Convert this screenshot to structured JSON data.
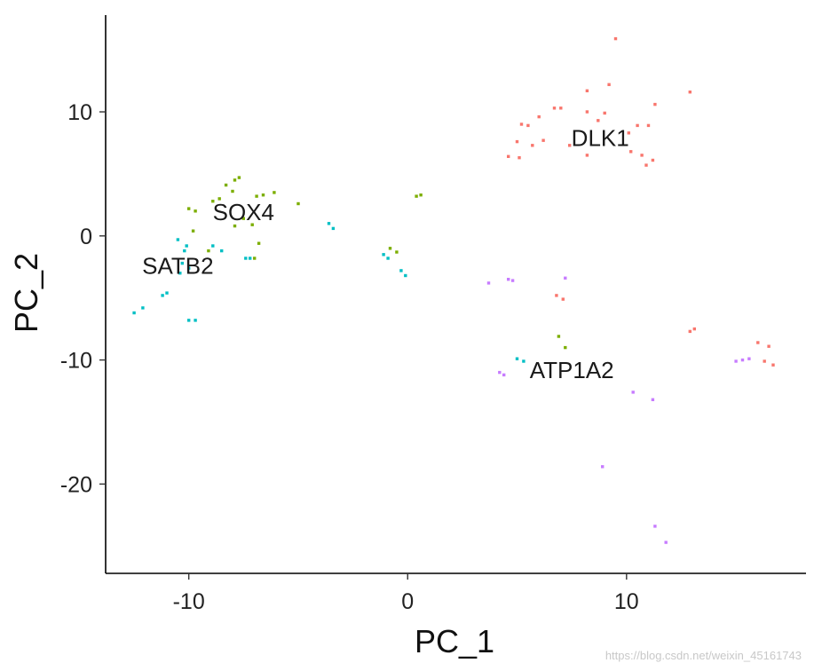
{
  "chart_data": {
    "type": "scatter",
    "xlabel": "PC_1",
    "ylabel": "PC_2",
    "xlim": [
      -13.8,
      18.2
    ],
    "ylim": [
      -27.2,
      17.8
    ],
    "x_ticks": [
      -10,
      0,
      10
    ],
    "y_ticks": [
      10,
      0,
      -10,
      -20
    ],
    "grid": false,
    "legend": "none",
    "series": [
      {
        "color": "#F8766D",
        "points": [
          [
            9.5,
            15.9
          ],
          [
            8.2,
            11.7
          ],
          [
            9.2,
            12.2
          ],
          [
            12.9,
            11.6
          ],
          [
            6.7,
            10.3
          ],
          [
            7.0,
            10.3
          ],
          [
            8.2,
            10.0
          ],
          [
            9.0,
            9.9
          ],
          [
            11.3,
            10.6
          ],
          [
            6.0,
            9.6
          ],
          [
            8.7,
            9.3
          ],
          [
            5.2,
            9.0
          ],
          [
            5.5,
            8.9
          ],
          [
            10.5,
            8.9
          ],
          [
            11.0,
            8.9
          ],
          [
            10.1,
            8.3
          ],
          [
            5.0,
            7.6
          ],
          [
            5.7,
            7.3
          ],
          [
            7.4,
            7.3
          ],
          [
            6.2,
            7.7
          ],
          [
            10.2,
            6.8
          ],
          [
            4.6,
            6.4
          ],
          [
            5.1,
            6.3
          ],
          [
            8.2,
            6.5
          ],
          [
            10.7,
            6.5
          ],
          [
            11.2,
            6.1
          ],
          [
            10.9,
            5.7
          ],
          [
            6.8,
            -4.8
          ],
          [
            7.1,
            -5.1
          ],
          [
            12.9,
            -7.7
          ],
          [
            13.1,
            -7.5
          ],
          [
            16.0,
            -8.6
          ],
          [
            16.5,
            -8.9
          ],
          [
            16.3,
            -10.1
          ],
          [
            16.7,
            -10.4
          ]
        ]
      },
      {
        "color": "#7CAE00",
        "points": [
          [
            -7.7,
            4.7
          ],
          [
            -7.9,
            4.5
          ],
          [
            -8.3,
            4.1
          ],
          [
            -8.0,
            3.6
          ],
          [
            -6.1,
            3.5
          ],
          [
            -6.9,
            3.2
          ],
          [
            -6.6,
            3.3
          ],
          [
            -8.6,
            3.0
          ],
          [
            -8.9,
            2.8
          ],
          [
            -5.0,
            2.6
          ],
          [
            0.4,
            3.2
          ],
          [
            0.6,
            3.3
          ],
          [
            -10.0,
            2.2
          ],
          [
            -9.7,
            2.0
          ],
          [
            -7.5,
            1.4
          ],
          [
            -7.9,
            0.8
          ],
          [
            -7.1,
            0.9
          ],
          [
            -9.8,
            0.4
          ],
          [
            -6.8,
            -0.6
          ],
          [
            -0.8,
            -1.0
          ],
          [
            -0.5,
            -1.3
          ],
          [
            -9.1,
            -1.2
          ],
          [
            -7.0,
            -1.8
          ],
          [
            6.9,
            -8.1
          ],
          [
            7.2,
            -9.0
          ]
        ]
      },
      {
        "color": "#00BFC4",
        "points": [
          [
            -3.6,
            1.0
          ],
          [
            -3.4,
            0.6
          ],
          [
            -10.5,
            -0.3
          ],
          [
            -10.1,
            -0.8
          ],
          [
            -8.9,
            -0.8
          ],
          [
            -8.5,
            -1.2
          ],
          [
            -10.2,
            -1.2
          ],
          [
            -7.4,
            -1.8
          ],
          [
            -7.2,
            -1.8
          ],
          [
            -1.1,
            -1.5
          ],
          [
            -0.9,
            -1.8
          ],
          [
            -10.3,
            -2.2
          ],
          [
            -10.0,
            -2.6
          ],
          [
            -10.4,
            -3.0
          ],
          [
            -0.3,
            -2.8
          ],
          [
            -0.1,
            -3.2
          ],
          [
            -11.0,
            -4.6
          ],
          [
            -11.2,
            -4.8
          ],
          [
            -12.1,
            -5.8
          ],
          [
            -12.5,
            -6.2
          ],
          [
            -10.0,
            -6.8
          ],
          [
            -9.7,
            -6.8
          ],
          [
            5.0,
            -9.9
          ],
          [
            5.3,
            -10.1
          ]
        ]
      },
      {
        "color": "#C77CFF",
        "points": [
          [
            3.7,
            -3.8
          ],
          [
            4.6,
            -3.5
          ],
          [
            4.8,
            -3.6
          ],
          [
            7.2,
            -3.4
          ],
          [
            4.2,
            -11.0
          ],
          [
            4.4,
            -11.2
          ],
          [
            10.3,
            -12.6
          ],
          [
            11.2,
            -13.2
          ],
          [
            8.9,
            -18.6
          ],
          [
            11.3,
            -23.4
          ],
          [
            11.8,
            -24.7
          ],
          [
            15.0,
            -10.1
          ],
          [
            15.3,
            -10.0
          ],
          [
            15.6,
            -9.9
          ]
        ]
      }
    ],
    "annotations": [
      {
        "text": "DLK1",
        "x": 8.8,
        "y": 7.9
      },
      {
        "text": "SOX4",
        "x": -7.5,
        "y": 1.9
      },
      {
        "text": "SATB2",
        "x": -10.5,
        "y": -2.4
      },
      {
        "text": "ATP1A2",
        "x": 7.5,
        "y": -10.8
      }
    ]
  },
  "watermark": "https://blog.csdn.net/weixin_45161743"
}
